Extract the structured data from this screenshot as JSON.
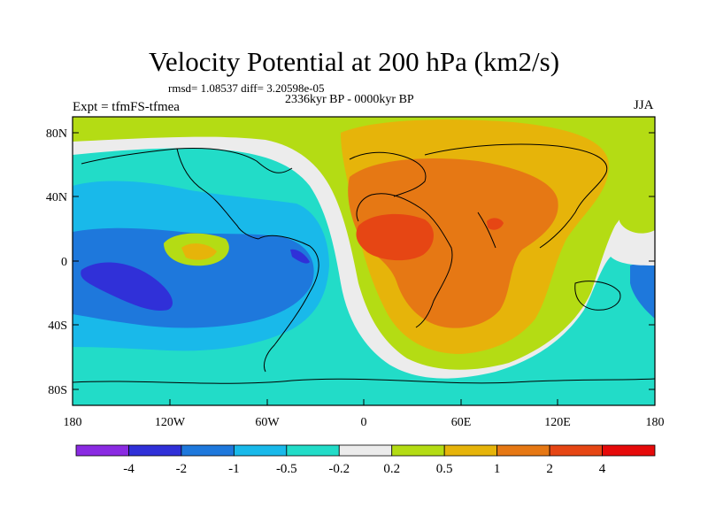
{
  "header": {
    "title": "Velocity Potential at 200 hPa (km2/s)",
    "stats": "rmsd= 1.08537 diff= 3.20598e-05",
    "period": "2336kyr BP - 0000kyr BP",
    "experiment": "Expt = tfmFS-tfmea",
    "season": "JJA"
  },
  "axes": {
    "x_ticks": [
      "180",
      "120W",
      "60W",
      "0",
      "60E",
      "120E",
      "180"
    ],
    "y_ticks": [
      "80N",
      "40N",
      "0",
      "40S",
      "80S"
    ]
  },
  "colorbar": {
    "labels": [
      "-4",
      "-2",
      "-1",
      "-0.5",
      "-0.2",
      "0.2",
      "0.5",
      "1",
      "2",
      "4"
    ],
    "colors": [
      "#8a2be2",
      "#3030d8",
      "#1e78dc",
      "#19b9ea",
      "#22dcc8",
      "#ececec",
      "#b4dc14",
      "#e6b40a",
      "#e67814",
      "#e64614",
      "#e60a0a"
    ]
  }
}
